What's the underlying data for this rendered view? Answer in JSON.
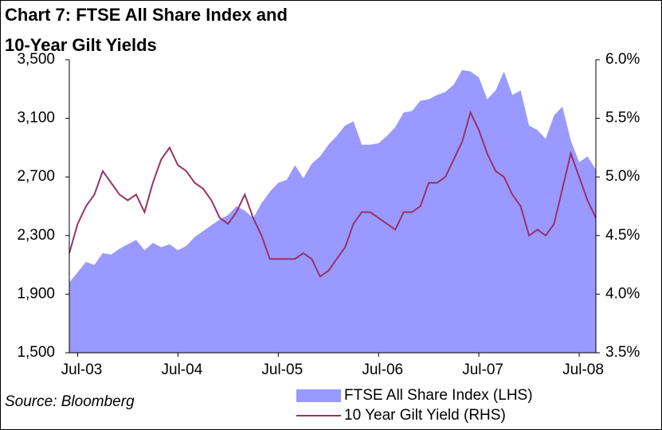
{
  "chart_data": {
    "type": "area-line",
    "title": [
      "Chart 7: FTSE All Share Index and",
      "10-Year Gilt Yields"
    ],
    "source": "Source: Bloomberg",
    "x": [
      "Jun-03",
      "Jul-03",
      "Aug-03",
      "Sep-03",
      "Oct-03",
      "Nov-03",
      "Dec-03",
      "Jan-04",
      "Feb-04",
      "Mar-04",
      "Apr-04",
      "May-04",
      "Jun-04",
      "Jul-04",
      "Aug-04",
      "Sep-04",
      "Oct-04",
      "Nov-04",
      "Dec-04",
      "Jan-05",
      "Feb-05",
      "Mar-05",
      "Apr-05",
      "May-05",
      "Jun-05",
      "Jul-05",
      "Aug-05",
      "Sep-05",
      "Oct-05",
      "Nov-05",
      "Dec-05",
      "Jan-06",
      "Feb-06",
      "Mar-06",
      "Apr-06",
      "May-06",
      "Jun-06",
      "Jul-06",
      "Aug-06",
      "Sep-06",
      "Oct-06",
      "Nov-06",
      "Dec-06",
      "Jan-07",
      "Feb-07",
      "Mar-07",
      "Apr-07",
      "May-07",
      "Jun-07",
      "Jul-07",
      "Aug-07",
      "Sep-07",
      "Oct-07",
      "Nov-07",
      "Dec-07",
      "Jan-08",
      "Feb-08",
      "Mar-08",
      "Apr-08",
      "May-08",
      "Jun-08",
      "Jul-08",
      "Aug-08",
      "Sep-08"
    ],
    "series": [
      {
        "name": "FTSE All Share Index (LHS)",
        "color": "#9999ff",
        "axis": "y",
        "values": [
          1980,
          2050,
          2120,
          2100,
          2180,
          2170,
          2210,
          2240,
          2270,
          2200,
          2250,
          2220,
          2240,
          2200,
          2230,
          2290,
          2330,
          2370,
          2410,
          2440,
          2500,
          2470,
          2420,
          2520,
          2600,
          2660,
          2680,
          2780,
          2690,
          2790,
          2840,
          2920,
          2980,
          3050,
          3080,
          2920,
          2920,
          2930,
          2980,
          3040,
          3140,
          3150,
          3220,
          3230,
          3260,
          3280,
          3330,
          3430,
          3420,
          3380,
          3230,
          3290,
          3420,
          3260,
          3290,
          3050,
          3020,
          2960,
          3120,
          3180,
          2950,
          2800,
          2840,
          2750
        ]
      },
      {
        "name": "10 Year Gilt Yield (RHS)",
        "color": "#993366",
        "axis": "y2",
        "values": [
          4.35,
          4.6,
          4.75,
          4.85,
          5.05,
          4.95,
          4.85,
          4.8,
          4.85,
          4.7,
          4.95,
          5.15,
          5.25,
          5.1,
          5.05,
          4.95,
          4.9,
          4.8,
          4.65,
          4.6,
          4.7,
          4.85,
          4.65,
          4.5,
          4.3,
          4.3,
          4.3,
          4.3,
          4.35,
          4.3,
          4.15,
          4.2,
          4.3,
          4.4,
          4.6,
          4.7,
          4.7,
          4.65,
          4.6,
          4.55,
          4.7,
          4.7,
          4.75,
          4.95,
          4.95,
          5.0,
          5.15,
          5.3,
          5.55,
          5.4,
          5.2,
          5.05,
          5.0,
          4.85,
          4.75,
          4.5,
          4.55,
          4.5,
          4.6,
          4.9,
          5.2,
          5.0,
          4.8,
          4.65
        ]
      }
    ],
    "xlim": [
      "Jun-03",
      "Sep-08"
    ],
    "xticks": [
      "Jul-03",
      "Jul-04",
      "Jul-05",
      "Jul-06",
      "Jul-07",
      "Jul-08"
    ],
    "ylim": [
      1500,
      3500
    ],
    "yticks": [
      {
        "value": 1500,
        "label": "1,500"
      },
      {
        "value": 1900,
        "label": "1,900"
      },
      {
        "value": 2300,
        "label": "2,300"
      },
      {
        "value": 2700,
        "label": "2,700"
      },
      {
        "value": 3100,
        "label": "3,100"
      },
      {
        "value": 3500,
        "label": "3,500"
      }
    ],
    "y2lim": [
      3.5,
      6.0
    ],
    "y2ticks": [
      {
        "value": 3.5,
        "label": "3.5%"
      },
      {
        "value": 4.0,
        "label": "4.0%"
      },
      {
        "value": 4.5,
        "label": "4.5%"
      },
      {
        "value": 5.0,
        "label": "5.0%"
      },
      {
        "value": 5.5,
        "label": "5.5%"
      },
      {
        "value": 6.0,
        "label": "6.0%"
      }
    ]
  }
}
